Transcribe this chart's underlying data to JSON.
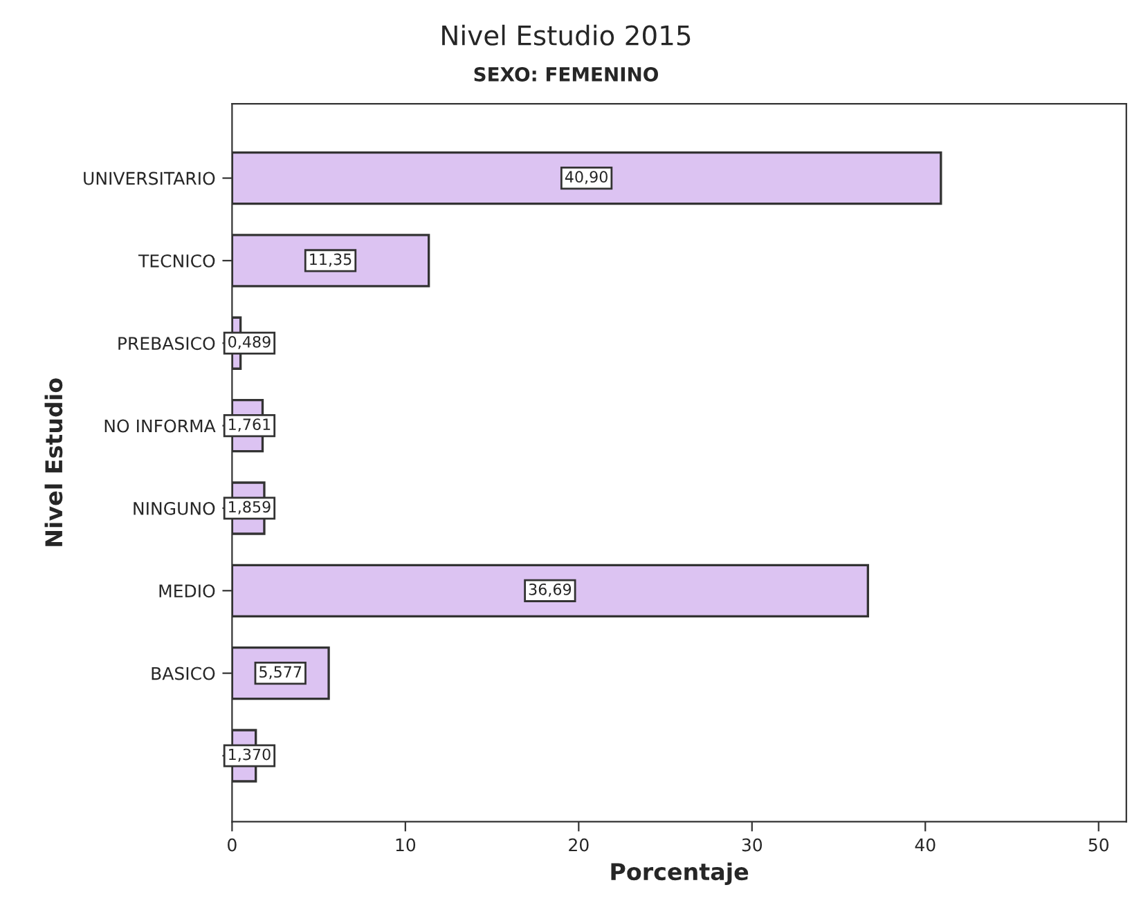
{
  "chart_data": {
    "type": "bar",
    "orientation": "horizontal",
    "title": "Nivel Estudio 2015",
    "subtitle": "SEXO: FEMENINO",
    "xlabel": "Porcentaje",
    "ylabel": "Nivel Estudio",
    "categories": [
      "UNIVERSITARIO",
      "TECNICO",
      "PREBASICO",
      "NO INFORMA",
      "NINGUNO",
      "MEDIO",
      "BASICO",
      null
    ],
    "values": [
      40.9,
      11.35,
      0.489,
      1.761,
      1.859,
      36.69,
      5.577,
      1.37
    ],
    "value_labels": [
      "40,90",
      "11,35",
      "0,489",
      "1,761",
      "1,859",
      "36,69",
      "5,577",
      "1,370"
    ],
    "color": "#dcc3f2",
    "xlim": [
      0,
      51.6
    ],
    "xticks": [
      0,
      10,
      20,
      30,
      40,
      50
    ],
    "grid": false
  }
}
